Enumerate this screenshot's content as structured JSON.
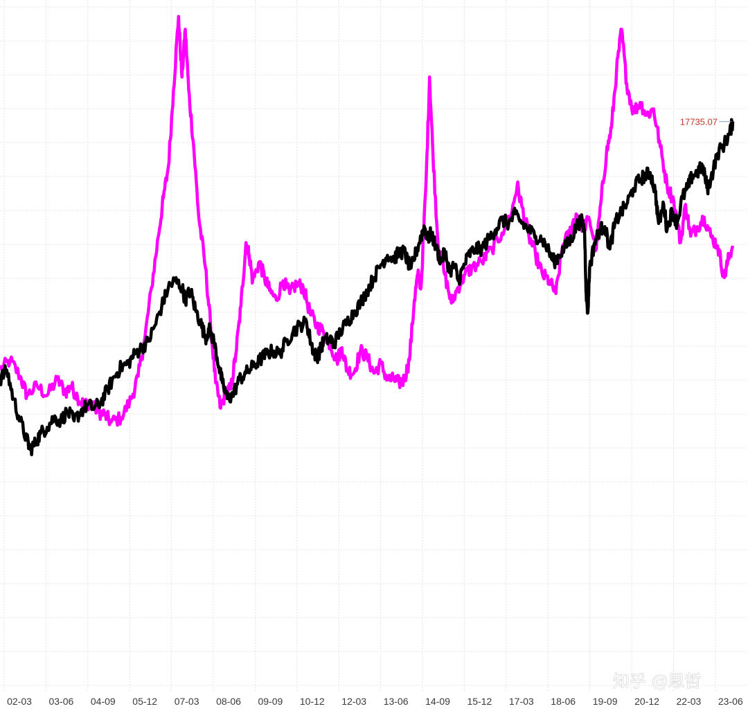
{
  "watermark": "知乎 @思哲",
  "colors": {
    "series_a": "#ff00ff",
    "series_b": "#000000",
    "grid": "#e4e4e4",
    "value_label": "#c0392b",
    "background": "#ffffff"
  },
  "chart_data": {
    "type": "line",
    "title": "",
    "xlabel": "",
    "ylabel": "",
    "grid": true,
    "x_tick_labels": [
      "02-03",
      "03-06",
      "04-09",
      "05-12",
      "07-03",
      "08-06",
      "09-09",
      "10-12",
      "12-03",
      "13-06",
      "14-09",
      "15-12",
      "17-03",
      "18-06",
      "19-09",
      "20-12",
      "22-03",
      "23-06"
    ],
    "last_value_label": "17735.07",
    "x_range": [
      2002.0,
      2023.75
    ],
    "x_unit": "year",
    "y_range": [
      0,
      100
    ],
    "y_unit": "relative index level (no y-axis printed)",
    "series": [
      {
        "key": "magenta",
        "color": "#ff00ff",
        "points": [
          [
            2002.0,
            43.0
          ],
          [
            2002.3,
            44.5
          ],
          [
            2002.6,
            42.0
          ],
          [
            2002.8,
            39.0
          ],
          [
            2003.1,
            40.5
          ],
          [
            2003.4,
            39.0
          ],
          [
            2003.7,
            41.5
          ],
          [
            2003.95,
            39.5
          ],
          [
            2004.1,
            40.5
          ],
          [
            2004.3,
            38.8
          ],
          [
            2004.5,
            37.5
          ],
          [
            2004.7,
            38.0
          ],
          [
            2004.9,
            36.5
          ],
          [
            2005.1,
            36.0
          ],
          [
            2005.3,
            34.8
          ],
          [
            2005.6,
            35.5
          ],
          [
            2005.9,
            38.5
          ],
          [
            2006.1,
            42.0
          ],
          [
            2006.3,
            48.0
          ],
          [
            2006.5,
            56.0
          ],
          [
            2006.7,
            64.0
          ],
          [
            2006.85,
            70.0
          ],
          [
            2007.0,
            75.0
          ],
          [
            2007.15,
            87.0
          ],
          [
            2007.3,
            98.5
          ],
          [
            2007.4,
            89.0
          ],
          [
            2007.5,
            96.5
          ],
          [
            2007.6,
            87.0
          ],
          [
            2007.75,
            78.0
          ],
          [
            2007.9,
            67.0
          ],
          [
            2008.1,
            59.0
          ],
          [
            2008.25,
            50.0
          ],
          [
            2008.4,
            41.0
          ],
          [
            2008.55,
            37.0
          ],
          [
            2008.7,
            39.5
          ],
          [
            2008.85,
            40.0
          ],
          [
            2009.0,
            45.5
          ],
          [
            2009.15,
            53.0
          ],
          [
            2009.3,
            63.0
          ],
          [
            2009.4,
            61.0
          ],
          [
            2009.5,
            57.0
          ],
          [
            2009.7,
            60.0
          ],
          [
            2009.85,
            57.5
          ],
          [
            2010.0,
            55.5
          ],
          [
            2010.2,
            54.0
          ],
          [
            2010.4,
            57.0
          ],
          [
            2010.6,
            55.0
          ],
          [
            2010.8,
            56.5
          ],
          [
            2011.0,
            56.0
          ],
          [
            2011.2,
            52.0
          ],
          [
            2011.4,
            50.0
          ],
          [
            2011.6,
            49.0
          ],
          [
            2011.8,
            47.0
          ],
          [
            2012.0,
            44.5
          ],
          [
            2012.15,
            46.5
          ],
          [
            2012.3,
            43.0
          ],
          [
            2012.5,
            42.5
          ],
          [
            2012.7,
            46.0
          ],
          [
            2012.9,
            45.0
          ],
          [
            2013.1,
            42.5
          ],
          [
            2013.3,
            44.0
          ],
          [
            2013.5,
            41.5
          ],
          [
            2013.7,
            41.5
          ],
          [
            2013.85,
            41.0
          ],
          [
            2014.0,
            41.5
          ],
          [
            2014.15,
            44.5
          ],
          [
            2014.3,
            54.0
          ],
          [
            2014.4,
            58.0
          ],
          [
            2014.5,
            56.0
          ],
          [
            2014.65,
            73.0
          ],
          [
            2014.75,
            89.0
          ],
          [
            2014.85,
            77.0
          ],
          [
            2015.0,
            63.0
          ],
          [
            2015.2,
            58.0
          ],
          [
            2015.4,
            53.5
          ],
          [
            2015.6,
            56.0
          ],
          [
            2015.8,
            58.0
          ],
          [
            2016.0,
            59.0
          ],
          [
            2016.3,
            60.0
          ],
          [
            2016.6,
            62.0
          ],
          [
            2016.9,
            64.5
          ],
          [
            2017.2,
            68.0
          ],
          [
            2017.35,
            72.0
          ],
          [
            2017.5,
            68.5
          ],
          [
            2017.7,
            64.0
          ],
          [
            2017.9,
            61.0
          ],
          [
            2018.1,
            58.0
          ],
          [
            2018.3,
            57.0
          ],
          [
            2018.5,
            55.0
          ],
          [
            2018.7,
            62.5
          ],
          [
            2018.9,
            64.5
          ],
          [
            2019.1,
            67.5
          ],
          [
            2019.3,
            65.5
          ],
          [
            2019.5,
            66.5
          ],
          [
            2019.7,
            62.0
          ],
          [
            2019.85,
            70.0
          ],
          [
            2020.0,
            77.0
          ],
          [
            2020.15,
            81.0
          ],
          [
            2020.3,
            90.0
          ],
          [
            2020.45,
            96.5
          ],
          [
            2020.6,
            88.0
          ],
          [
            2020.8,
            83.5
          ],
          [
            2021.0,
            85.0
          ],
          [
            2021.2,
            83.0
          ],
          [
            2021.4,
            84.0
          ],
          [
            2021.6,
            78.0
          ],
          [
            2021.8,
            72.0
          ],
          [
            2022.0,
            69.5
          ],
          [
            2022.2,
            63.0
          ],
          [
            2022.35,
            69.0
          ],
          [
            2022.5,
            64.0
          ],
          [
            2022.7,
            65.5
          ],
          [
            2022.9,
            67.0
          ],
          [
            2023.1,
            64.0
          ],
          [
            2023.3,
            62.5
          ],
          [
            2023.5,
            57.5
          ],
          [
            2023.6,
            60.0
          ],
          [
            2023.75,
            62.5
          ]
        ]
      },
      {
        "key": "black",
        "color": "#000000",
        "points": [
          [
            2002.0,
            41.5
          ],
          [
            2002.2,
            43.0
          ],
          [
            2002.4,
            38.5
          ],
          [
            2002.6,
            35.0
          ],
          [
            2002.8,
            32.0
          ],
          [
            2002.9,
            30.5
          ],
          [
            2003.05,
            31.5
          ],
          [
            2003.2,
            33.0
          ],
          [
            2003.4,
            34.0
          ],
          [
            2003.6,
            35.5
          ],
          [
            2003.8,
            35.0
          ],
          [
            2004.0,
            36.5
          ],
          [
            2004.2,
            35.0
          ],
          [
            2004.4,
            36.5
          ],
          [
            2004.6,
            37.5
          ],
          [
            2004.8,
            37.0
          ],
          [
            2005.0,
            38.0
          ],
          [
            2005.2,
            40.0
          ],
          [
            2005.4,
            42.0
          ],
          [
            2005.6,
            43.5
          ],
          [
            2005.8,
            44.0
          ],
          [
            2006.0,
            45.5
          ],
          [
            2006.2,
            46.5
          ],
          [
            2006.4,
            47.5
          ],
          [
            2006.6,
            50.0
          ],
          [
            2006.8,
            53.0
          ],
          [
            2007.0,
            56.0
          ],
          [
            2007.2,
            57.0
          ],
          [
            2007.4,
            56.0
          ],
          [
            2007.5,
            54.0
          ],
          [
            2007.65,
            55.5
          ],
          [
            2007.8,
            52.5
          ],
          [
            2007.95,
            50.5
          ],
          [
            2008.1,
            48.0
          ],
          [
            2008.2,
            49.5
          ],
          [
            2008.35,
            47.5
          ],
          [
            2008.5,
            43.5
          ],
          [
            2008.6,
            41.0
          ],
          [
            2008.75,
            38.5
          ],
          [
            2008.9,
            39.0
          ],
          [
            2009.1,
            41.5
          ],
          [
            2009.3,
            42.5
          ],
          [
            2009.5,
            43.5
          ],
          [
            2009.7,
            44.5
          ],
          [
            2009.9,
            45.5
          ],
          [
            2010.1,
            46.0
          ],
          [
            2010.3,
            45.5
          ],
          [
            2010.5,
            47.5
          ],
          [
            2010.7,
            49.0
          ],
          [
            2010.9,
            50.0
          ],
          [
            2011.1,
            50.5
          ],
          [
            2011.2,
            48.0
          ],
          [
            2011.3,
            46.0
          ],
          [
            2011.4,
            45.0
          ],
          [
            2011.5,
            46.0
          ],
          [
            2011.6,
            47.5
          ],
          [
            2011.8,
            48.0
          ],
          [
            2011.9,
            47.0
          ],
          [
            2012.1,
            49.0
          ],
          [
            2012.3,
            50.5
          ],
          [
            2012.5,
            52.0
          ],
          [
            2012.7,
            53.5
          ],
          [
            2012.9,
            55.5
          ],
          [
            2013.1,
            57.5
          ],
          [
            2013.3,
            59.5
          ],
          [
            2013.5,
            61.0
          ],
          [
            2013.7,
            60.5
          ],
          [
            2013.85,
            61.5
          ],
          [
            2014.0,
            61.5
          ],
          [
            2014.1,
            60.0
          ],
          [
            2014.2,
            59.0
          ],
          [
            2014.35,
            61.5
          ],
          [
            2014.5,
            64.0
          ],
          [
            2014.6,
            65.5
          ],
          [
            2014.7,
            63.5
          ],
          [
            2014.8,
            64.5
          ],
          [
            2014.95,
            62.0
          ],
          [
            2015.1,
            60.0
          ],
          [
            2015.2,
            61.5
          ],
          [
            2015.35,
            58.5
          ],
          [
            2015.5,
            59.5
          ],
          [
            2015.6,
            57.0
          ],
          [
            2015.75,
            59.0
          ],
          [
            2015.9,
            61.0
          ],
          [
            2016.1,
            62.0
          ],
          [
            2016.3,
            62.0
          ],
          [
            2016.5,
            63.5
          ],
          [
            2016.7,
            65.0
          ],
          [
            2016.9,
            66.5
          ],
          [
            2017.1,
            66.0
          ],
          [
            2017.3,
            67.5
          ],
          [
            2017.5,
            66.0
          ],
          [
            2017.7,
            65.0
          ],
          [
            2017.9,
            64.0
          ],
          [
            2018.1,
            63.5
          ],
          [
            2018.3,
            61.5
          ],
          [
            2018.45,
            60.0
          ],
          [
            2018.6,
            61.0
          ],
          [
            2018.8,
            62.5
          ],
          [
            2018.95,
            63.5
          ],
          [
            2019.1,
            65.5
          ],
          [
            2019.25,
            66.5
          ],
          [
            2019.35,
            65.0
          ],
          [
            2019.4,
            55.0
          ],
          [
            2019.45,
            52.0
          ],
          [
            2019.5,
            59.0
          ],
          [
            2019.65,
            63.0
          ],
          [
            2019.8,
            65.0
          ],
          [
            2019.95,
            65.5
          ],
          [
            2020.1,
            62.0
          ],
          [
            2020.25,
            66.0
          ],
          [
            2020.4,
            67.5
          ],
          [
            2020.6,
            69.0
          ],
          [
            2020.8,
            71.5
          ],
          [
            2021.0,
            73.0
          ],
          [
            2021.15,
            73.5
          ],
          [
            2021.3,
            74.0
          ],
          [
            2021.45,
            71.0
          ],
          [
            2021.55,
            66.0
          ],
          [
            2021.7,
            69.0
          ],
          [
            2021.8,
            65.0
          ],
          [
            2021.95,
            68.0
          ],
          [
            2022.1,
            66.0
          ],
          [
            2022.25,
            70.0
          ],
          [
            2022.4,
            71.5
          ],
          [
            2022.55,
            73.5
          ],
          [
            2022.7,
            74.0
          ],
          [
            2022.85,
            75.0
          ],
          [
            2023.0,
            71.5
          ],
          [
            2023.1,
            73.0
          ],
          [
            2023.3,
            77.0
          ],
          [
            2023.5,
            78.5
          ],
          [
            2023.65,
            80.0
          ],
          [
            2023.75,
            82.0
          ]
        ]
      }
    ]
  }
}
